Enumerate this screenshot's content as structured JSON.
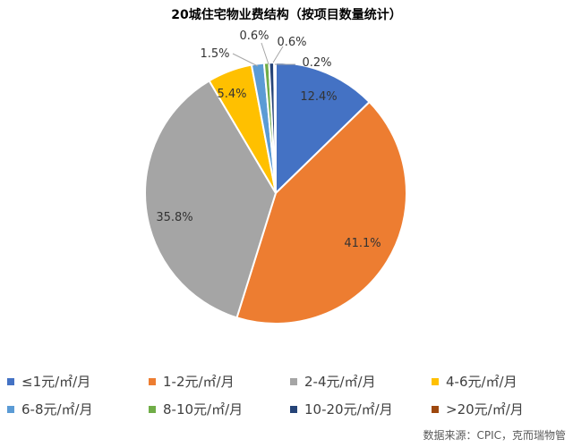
{
  "chart_data": {
    "type": "pie",
    "title": "20城住宅物业费结构（按项目数量统计）",
    "source": "数据来源：CPIC，克而瑞物管",
    "slices": [
      {
        "name": "≤1元/㎡/月",
        "value": 12.4,
        "label": "12.4%",
        "color": "#4472C4"
      },
      {
        "name": "1-2元/㎡/月",
        "value": 41.1,
        "label": "41.1%",
        "color": "#ED7D31"
      },
      {
        "name": "2-4元/㎡/月",
        "value": 35.8,
        "label": "35.8%",
        "color": "#A5A5A5"
      },
      {
        "name": "4-6元/㎡/月",
        "value": 5.4,
        "label": "5.4%",
        "color": "#FFC000"
      },
      {
        "name": "6-8元/㎡/月",
        "value": 1.5,
        "label": "1.5%",
        "color": "#5B9BD5"
      },
      {
        "name": "8-10元/㎡/月",
        "value": 0.6,
        "label": "0.6%",
        "color": "#70AD47"
      },
      {
        "name": "10-20元/㎡/月",
        "value": 0.6,
        "label": "0.6%",
        "color": "#264478"
      },
      {
        "name": ">20元/㎡/月",
        "value": 0.2,
        "label": "0.2%",
        "color": "#9E480E"
      }
    ],
    "legend_position": "bottom"
  }
}
